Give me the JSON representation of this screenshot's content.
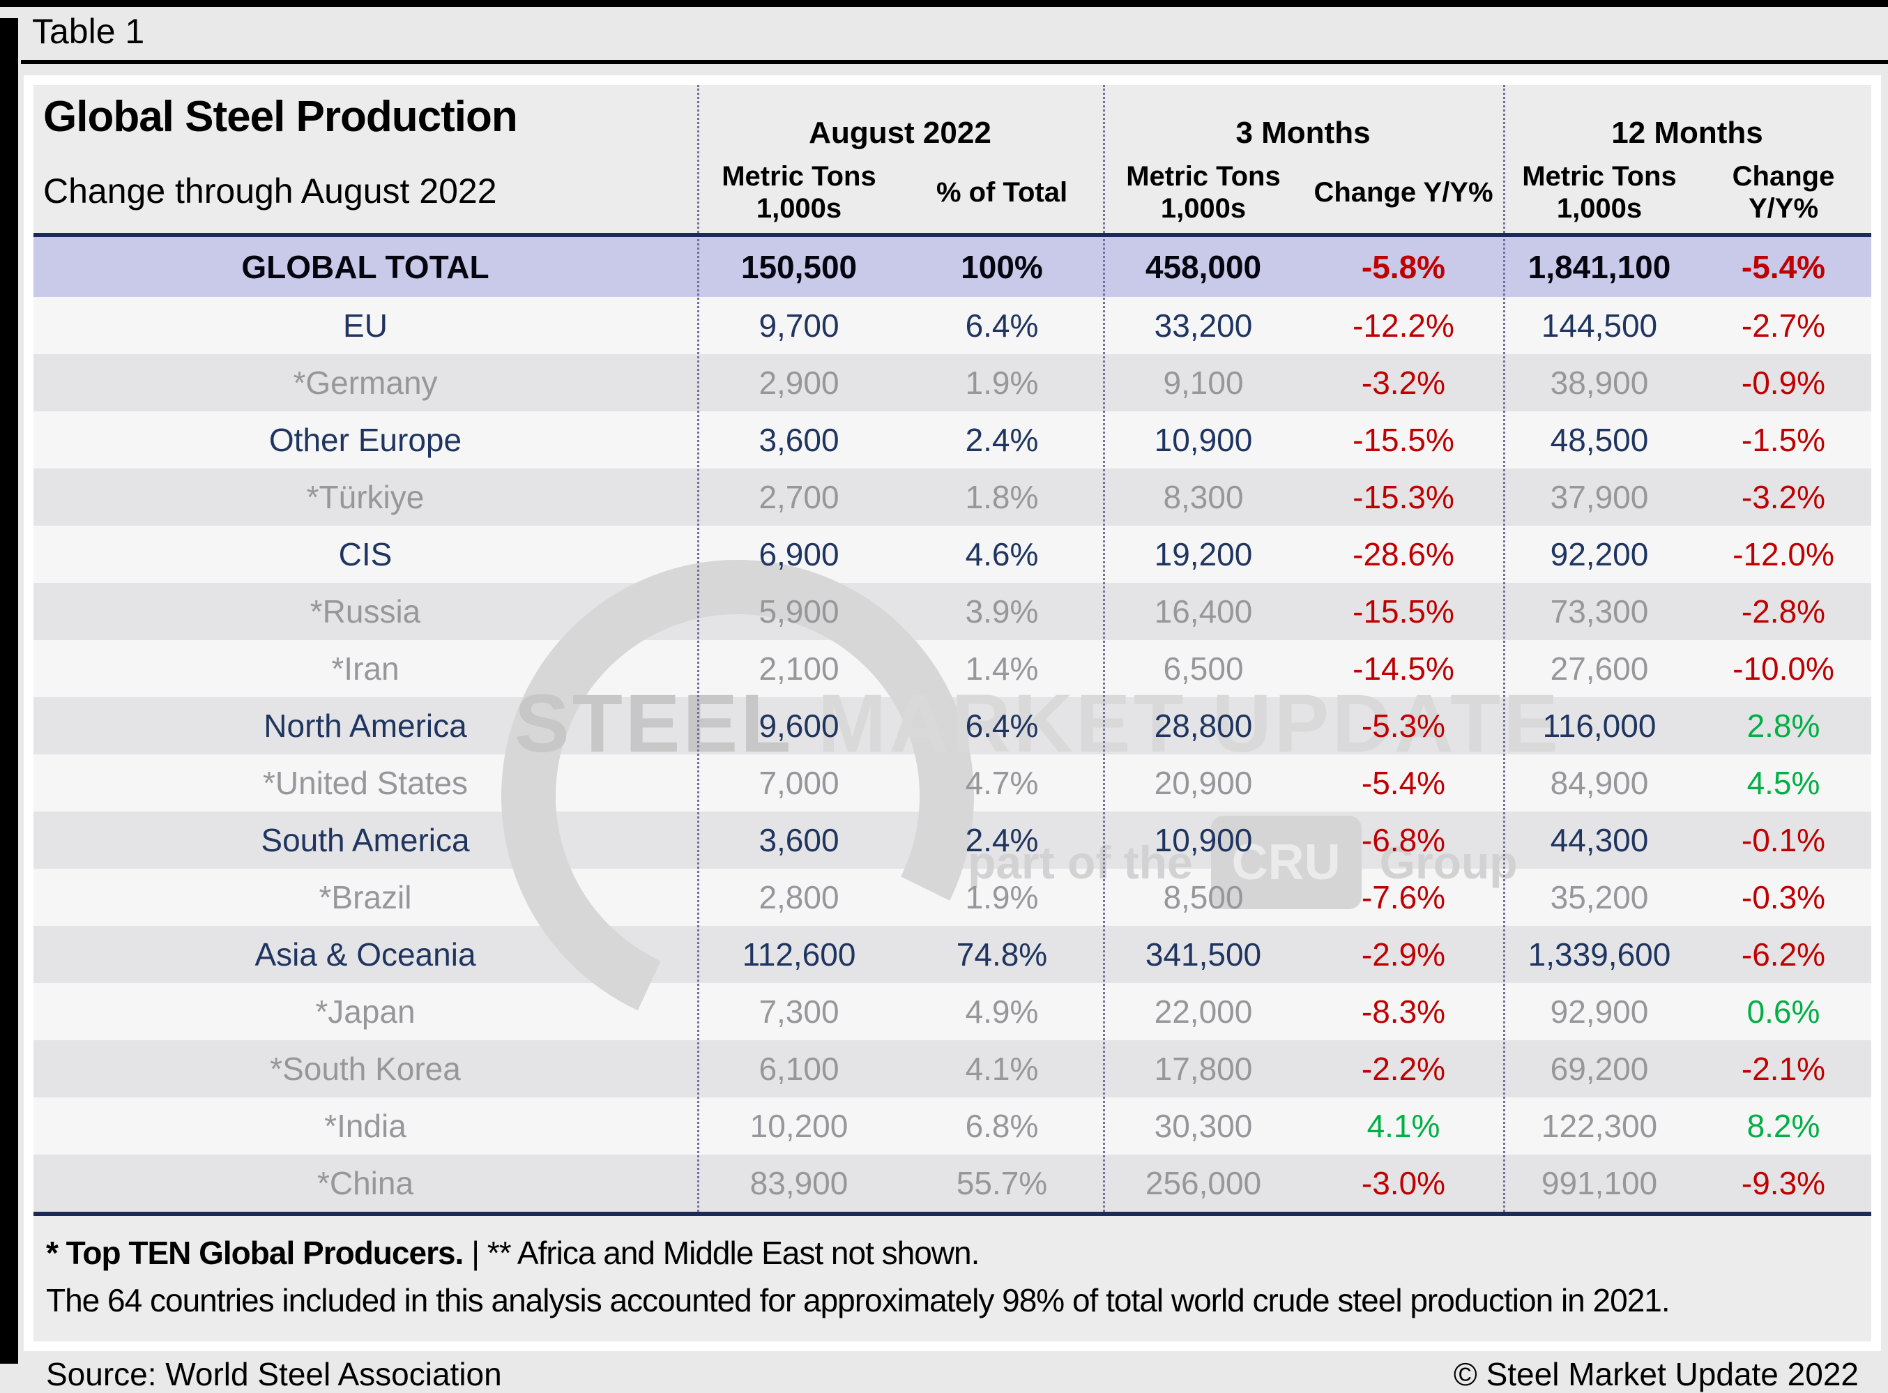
{
  "page": {
    "table_label": "Table 1"
  },
  "header": {
    "title": "Global Steel Production",
    "subtitle": "Change through August 2022",
    "groups": [
      {
        "label": "August 2022"
      },
      {
        "label": "3 Months"
      },
      {
        "label": "12 Months"
      }
    ],
    "subheaders": [
      {
        "l1": "Metric Tons",
        "l2": "1,000s"
      },
      {
        "l1": "% of Total",
        "l2": ""
      },
      {
        "l1": "Metric Tons",
        "l2": "1,000s"
      },
      {
        "l1": "Change Y/Y%",
        "l2": ""
      },
      {
        "l1": "Metric Tons",
        "l2": "1,000s"
      },
      {
        "l1": "Change Y/Y%",
        "l2": ""
      }
    ]
  },
  "table": {
    "total": {
      "name": "GLOBAL TOTAL",
      "aug_mt": "150,500",
      "aug_pct": "100%",
      "m3_mt": "458,000",
      "m3_chg": "-5.8%",
      "m12_mt": "1,841,100",
      "m12_chg": "-5.4%"
    },
    "rows": [
      {
        "name": "EU",
        "tier": "region",
        "aug_mt": "9,700",
        "aug_pct": "6.4%",
        "m3_mt": "33,200",
        "m3_chg": "-12.2%",
        "m12_mt": "144,500",
        "m12_chg": "-2.7%"
      },
      {
        "name": "*Germany",
        "tier": "country",
        "aug_mt": "2,900",
        "aug_pct": "1.9%",
        "m3_mt": "9,100",
        "m3_chg": "-3.2%",
        "m12_mt": "38,900",
        "m12_chg": "-0.9%"
      },
      {
        "name": "Other Europe",
        "tier": "region",
        "aug_mt": "3,600",
        "aug_pct": "2.4%",
        "m3_mt": "10,900",
        "m3_chg": "-15.5%",
        "m12_mt": "48,500",
        "m12_chg": "-1.5%"
      },
      {
        "name": "*Türkiye",
        "tier": "country",
        "aug_mt": "2,700",
        "aug_pct": "1.8%",
        "m3_mt": "8,300",
        "m3_chg": "-15.3%",
        "m12_mt": "37,900",
        "m12_chg": "-3.2%"
      },
      {
        "name": "CIS",
        "tier": "region",
        "aug_mt": "6,900",
        "aug_pct": "4.6%",
        "m3_mt": "19,200",
        "m3_chg": "-28.6%",
        "m12_mt": "92,200",
        "m12_chg": "-12.0%"
      },
      {
        "name": "*Russia",
        "tier": "country",
        "aug_mt": "5,900",
        "aug_pct": "3.9%",
        "m3_mt": "16,400",
        "m3_chg": "-15.5%",
        "m12_mt": "73,300",
        "m12_chg": "-2.8%"
      },
      {
        "name": "*Iran",
        "tier": "country",
        "aug_mt": "2,100",
        "aug_pct": "1.4%",
        "m3_mt": "6,500",
        "m3_chg": "-14.5%",
        "m12_mt": "27,600",
        "m12_chg": "-10.0%"
      },
      {
        "name": "North America",
        "tier": "region",
        "aug_mt": "9,600",
        "aug_pct": "6.4%",
        "m3_mt": "28,800",
        "m3_chg": "-5.3%",
        "m12_mt": "116,000",
        "m12_chg": "2.8%"
      },
      {
        "name": "*United States",
        "tier": "country",
        "aug_mt": "7,000",
        "aug_pct": "4.7%",
        "m3_mt": "20,900",
        "m3_chg": "-5.4%",
        "m12_mt": "84,900",
        "m12_chg": "4.5%"
      },
      {
        "name": "South America",
        "tier": "region",
        "aug_mt": "3,600",
        "aug_pct": "2.4%",
        "m3_mt": "10,900",
        "m3_chg": "-6.8%",
        "m12_mt": "44,300",
        "m12_chg": "-0.1%"
      },
      {
        "name": "*Brazil",
        "tier": "country",
        "aug_mt": "2,800",
        "aug_pct": "1.9%",
        "m3_mt": "8,500",
        "m3_chg": "-7.6%",
        "m12_mt": "35,200",
        "m12_chg": "-0.3%"
      },
      {
        "name": "Asia & Oceania",
        "tier": "region",
        "aug_mt": "112,600",
        "aug_pct": "74.8%",
        "m3_mt": "341,500",
        "m3_chg": "-2.9%",
        "m12_mt": "1,339,600",
        "m12_chg": "-6.2%"
      },
      {
        "name": "*Japan",
        "tier": "country",
        "aug_mt": "7,300",
        "aug_pct": "4.9%",
        "m3_mt": "22,000",
        "m3_chg": "-8.3%",
        "m12_mt": "92,900",
        "m12_chg": "0.6%"
      },
      {
        "name": "*South Korea",
        "tier": "country",
        "aug_mt": "6,100",
        "aug_pct": "4.1%",
        "m3_mt": "17,800",
        "m3_chg": "-2.2%",
        "m12_mt": "69,200",
        "m12_chg": "-2.1%"
      },
      {
        "name": "*India",
        "tier": "country",
        "aug_mt": "10,200",
        "aug_pct": "6.8%",
        "m3_mt": "30,300",
        "m3_chg": "4.1%",
        "m12_mt": "122,300",
        "m12_chg": "8.2%"
      },
      {
        "name": "*China",
        "tier": "country",
        "aug_mt": "83,900",
        "aug_pct": "55.7%",
        "m3_mt": "256,000",
        "m3_chg": "-3.0%",
        "m12_mt": "991,100",
        "m12_chg": "-9.3%"
      }
    ]
  },
  "footnotes": {
    "line1_bold": "* Top TEN Global Producers.",
    "line1_rest": " | ** Africa and Middle East not shown.",
    "line2": "The 64 countries included in this analysis accounted for approximately 98% of total world crude steel production in 2021.",
    "source": "Source: World Steel Association",
    "copyright": "© Steel Market Update 2022"
  },
  "watermark": {
    "word1": "STEEL",
    "word2": " MARKET UPDATE",
    "tagline_pre": "part of the",
    "tagline_box": "CRU",
    "tagline_post": "Group"
  },
  "colors": {
    "negative": "#c00000",
    "positive": "#00b044",
    "navy": "#1f3560",
    "gray": "#97979b",
    "total_row_bg": "#c9c9e9"
  }
}
